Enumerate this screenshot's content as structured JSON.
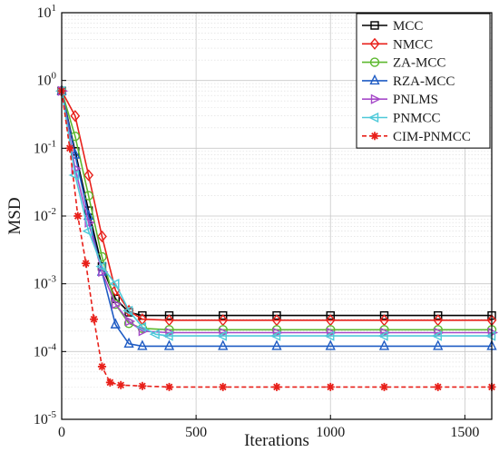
{
  "chart_data": {
    "type": "line",
    "title": "",
    "xlabel": "Iterations",
    "ylabel": "MSD",
    "xlim": [
      0,
      1600
    ],
    "ylim": [
      1e-05,
      10
    ],
    "yscale": "log",
    "grid": true,
    "legend_position": "top-right",
    "x_ticks": [
      {
        "value": 0,
        "label": "0"
      },
      {
        "value": 500,
        "label": "500"
      },
      {
        "value": 1000,
        "label": "1000"
      },
      {
        "value": 1500,
        "label": "1500"
      }
    ],
    "y_ticks": [
      {
        "value": 1e-05,
        "base": "10",
        "exp": "-5"
      },
      {
        "value": 0.0001,
        "base": "10",
        "exp": "-4"
      },
      {
        "value": 0.001,
        "base": "10",
        "exp": "-3"
      },
      {
        "value": 0.01,
        "base": "10",
        "exp": "-2"
      },
      {
        "value": 0.1,
        "base": "10",
        "exp": "-1"
      },
      {
        "value": 1,
        "base": "10",
        "exp": "0"
      },
      {
        "value": 10,
        "base": "10",
        "exp": "1"
      }
    ],
    "series": [
      {
        "name": "MCC",
        "color": "#000000",
        "marker": "square",
        "dashed": false,
        "x": [
          0,
          50,
          100,
          150,
          200,
          250,
          300,
          400,
          600,
          800,
          1000,
          1200,
          1400,
          1600
        ],
        "y": [
          0.7,
          0.09,
          0.012,
          0.0018,
          0.0006,
          0.00038,
          0.00034,
          0.00034,
          0.00034,
          0.00034,
          0.00034,
          0.00034,
          0.00034,
          0.00034
        ]
      },
      {
        "name": "NMCC",
        "color": "#e8201a",
        "marker": "diamond",
        "dashed": false,
        "x": [
          0,
          50,
          100,
          150,
          200,
          250,
          300,
          400,
          600,
          800,
          1000,
          1200,
          1400,
          1600
        ],
        "y": [
          0.7,
          0.3,
          0.04,
          0.005,
          0.0008,
          0.0004,
          0.0003,
          0.00029,
          0.00029,
          0.00029,
          0.00029,
          0.00029,
          0.00029,
          0.00029
        ]
      },
      {
        "name": "ZA-MCC",
        "color": "#5cb82e",
        "marker": "circle",
        "dashed": false,
        "x": [
          0,
          50,
          100,
          150,
          200,
          250,
          300,
          400,
          600,
          800,
          1000,
          1200,
          1400,
          1600
        ],
        "y": [
          0.7,
          0.15,
          0.02,
          0.0025,
          0.0005,
          0.00026,
          0.00022,
          0.00021,
          0.00021,
          0.00021,
          0.00021,
          0.00021,
          0.00021,
          0.00021
        ]
      },
      {
        "name": "RZA-MCC",
        "color": "#1f5cc4",
        "marker": "triangle-up",
        "dashed": false,
        "x": [
          0,
          50,
          100,
          150,
          200,
          250,
          300,
          400,
          600,
          800,
          1000,
          1200,
          1400,
          1600
        ],
        "y": [
          0.7,
          0.08,
          0.01,
          0.0015,
          0.00025,
          0.00013,
          0.00012,
          0.00012,
          0.00012,
          0.00012,
          0.00012,
          0.00012,
          0.00012,
          0.00012
        ]
      },
      {
        "name": "PNLMS",
        "color": "#a64ac9",
        "marker": "triangle-right",
        "dashed": false,
        "x": [
          0,
          50,
          100,
          150,
          200,
          250,
          300,
          400,
          600,
          800,
          1000,
          1200,
          1400,
          1600
        ],
        "y": [
          0.7,
          0.05,
          0.008,
          0.0015,
          0.0005,
          0.00028,
          0.0002,
          0.00019,
          0.00019,
          0.00019,
          0.00019,
          0.00019,
          0.00019,
          0.00019
        ]
      },
      {
        "name": "PNMCC",
        "color": "#4ec9d9",
        "marker": "triangle-left",
        "dashed": false,
        "x": [
          0,
          50,
          100,
          150,
          200,
          250,
          300,
          350,
          400,
          600,
          800,
          1000,
          1200,
          1400,
          1600
        ],
        "y": [
          0.7,
          0.04,
          0.006,
          0.0018,
          0.001,
          0.0004,
          0.00023,
          0.00018,
          0.00017,
          0.00017,
          0.00017,
          0.00017,
          0.00017,
          0.00017,
          0.00017
        ]
      },
      {
        "name": "CIM-PNMCC",
        "color": "#e8201a",
        "marker": "asterisk",
        "dashed": true,
        "x": [
          0,
          30,
          60,
          90,
          120,
          150,
          180,
          220,
          300,
          400,
          600,
          800,
          1000,
          1200,
          1400,
          1600
        ],
        "y": [
          0.7,
          0.1,
          0.01,
          0.002,
          0.0003,
          6e-05,
          3.5e-05,
          3.2e-05,
          3.1e-05,
          3e-05,
          3e-05,
          3e-05,
          3e-05,
          3e-05,
          3e-05,
          3e-05
        ]
      }
    ]
  }
}
